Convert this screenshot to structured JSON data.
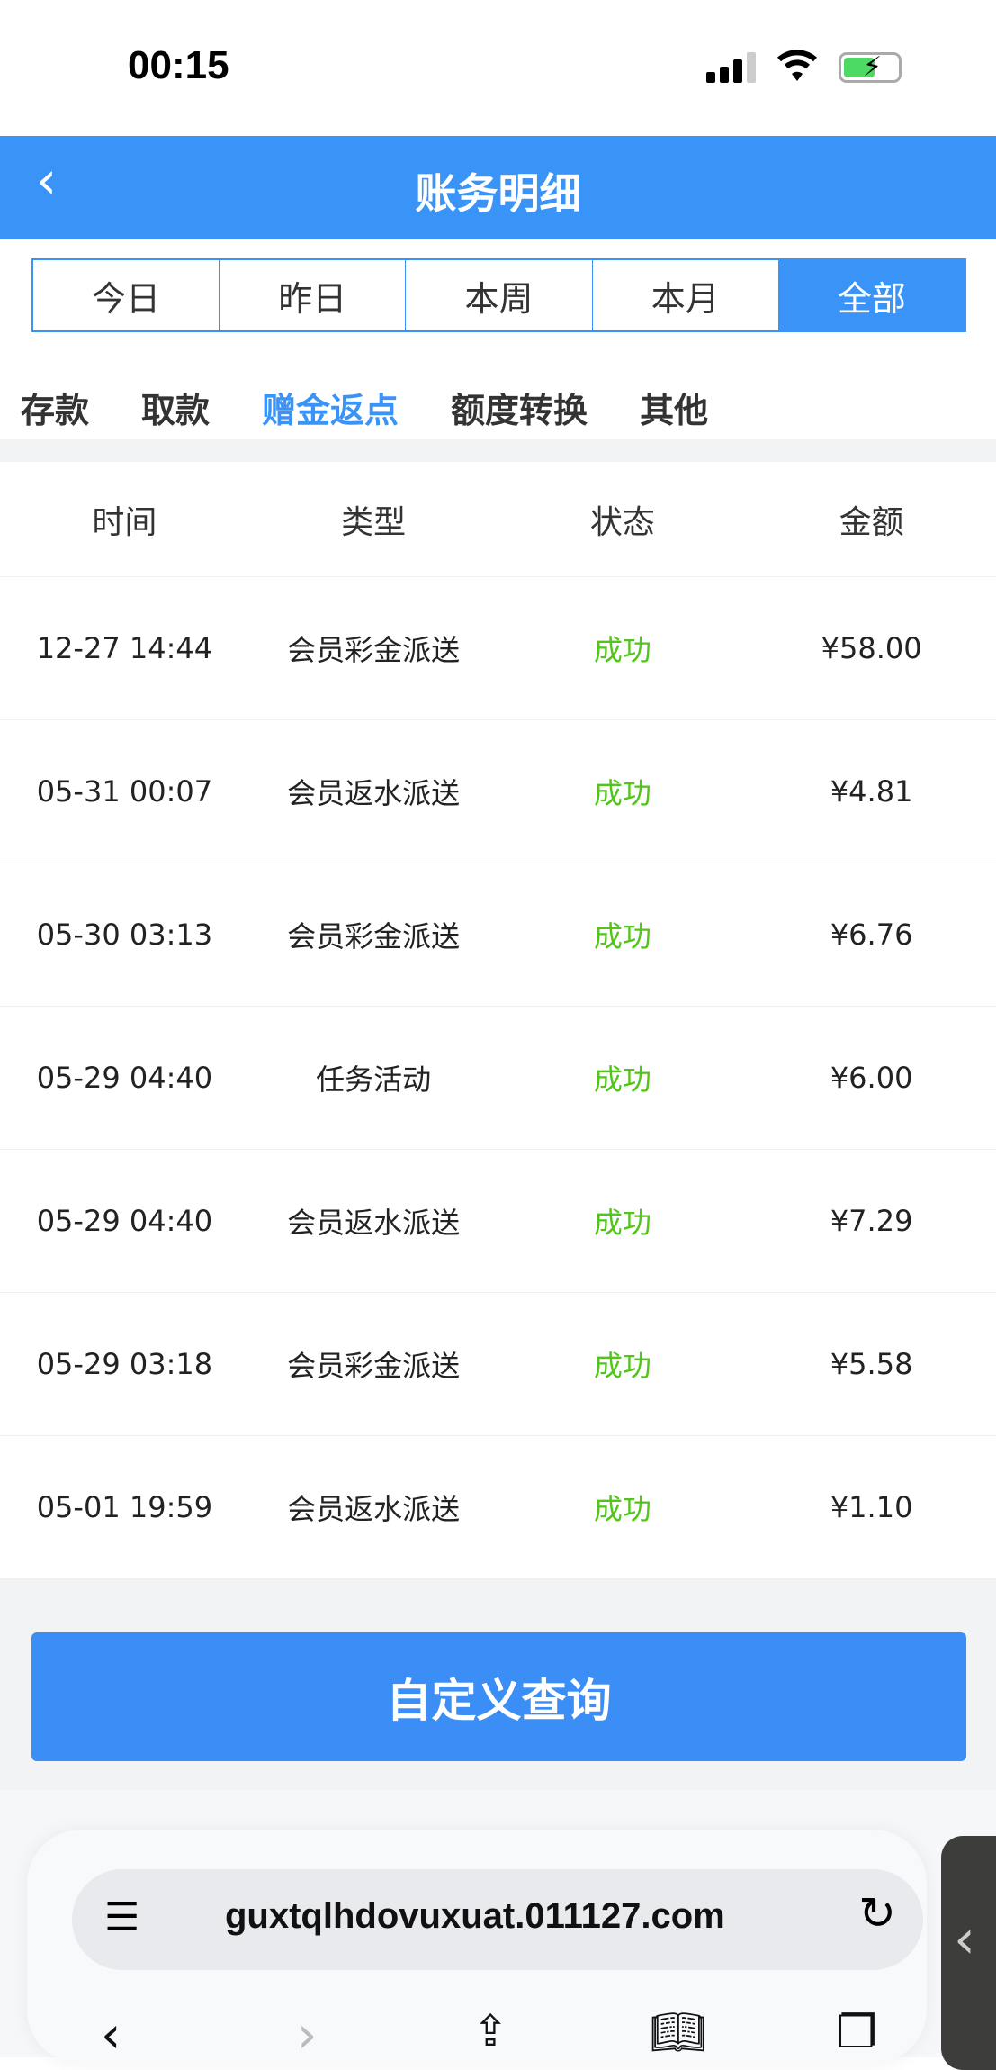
{
  "status_bar": {
    "time": "00:15"
  },
  "header": {
    "title": "账务明细",
    "back": "‹"
  },
  "date_filters": [
    {
      "label": "今日",
      "active": false
    },
    {
      "label": "昨日",
      "active": false
    },
    {
      "label": "本周",
      "active": false
    },
    {
      "label": "本月",
      "active": false
    },
    {
      "label": "全部",
      "active": true
    }
  ],
  "categories": [
    {
      "label": "存款",
      "active": false
    },
    {
      "label": "取款",
      "active": false
    },
    {
      "label": "赠金返点",
      "active": true
    },
    {
      "label": "额度转换",
      "active": false
    },
    {
      "label": "其他",
      "active": false
    }
  ],
  "table": {
    "columns": [
      "时间",
      "类型",
      "状态",
      "金额"
    ],
    "rows": [
      [
        "12-27 14:44",
        "会员彩金派送",
        "成功",
        "¥58.00"
      ],
      [
        "05-31 00:07",
        "会员返水派送",
        "成功",
        "¥4.81"
      ],
      [
        "05-30 03:13",
        "会员彩金派送",
        "成功",
        "¥6.76"
      ],
      [
        "05-29 04:40",
        "任务活动",
        "成功",
        "¥6.00"
      ],
      [
        "05-29 04:40",
        "会员返水派送",
        "成功",
        "¥7.29"
      ],
      [
        "05-29 03:18",
        "会员彩金派送",
        "成功",
        "¥5.58"
      ],
      [
        "05-01 19:59",
        "会员返水派送",
        "成功",
        "¥1.10"
      ]
    ]
  },
  "custom_query_label": "自定义查询",
  "browser": {
    "url": "guxtqlhdovuxuat.011127.com"
  },
  "colors": {
    "primary": "#3a93f7",
    "success": "#52c41a"
  }
}
